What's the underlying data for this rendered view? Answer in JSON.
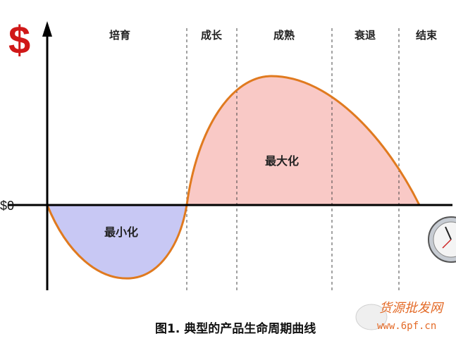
{
  "currency_symbol": "$",
  "zero_label": "$0",
  "stages": [
    "培育",
    "成长",
    "成熟",
    "衰退",
    "结束"
  ],
  "area_labels": {
    "negative": "最小化",
    "positive": "最大化"
  },
  "caption": "图1. 典型的产品生命周期曲线",
  "watermark": {
    "title": "货源批发网",
    "url": "www.6pf.cn"
  },
  "colors": {
    "curve": "#e07a1f",
    "positive_fill": "#f9c9c6",
    "negative_fill": "#c8c8f4",
    "dollar": "#d01818",
    "watermark": "#e05a10"
  },
  "icons": [
    "dollar-sign-icon",
    "clock-icon"
  ]
}
